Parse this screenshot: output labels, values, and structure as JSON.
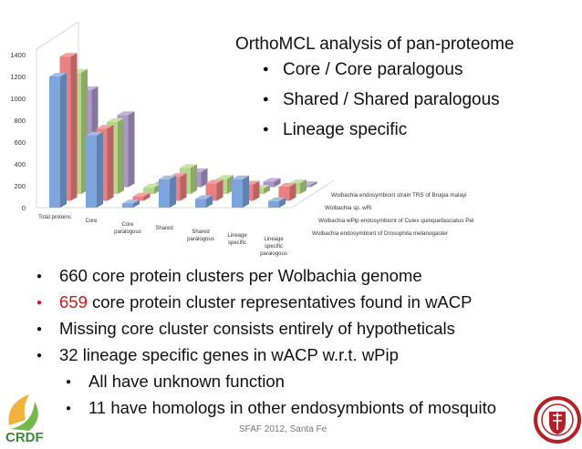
{
  "slide": {
    "side_title": "OrthoMCL analysis of pan-proteome",
    "side_items": [
      "Core / Core paralogous",
      "Shared / Shared paralogous",
      "Lineage specific"
    ],
    "bullets": [
      {
        "num": "",
        "text": "660 core protein clusters per Wolbachia genome"
      },
      {
        "num": "659",
        "text": " core protein cluster representatives found in wACP"
      },
      {
        "num": "",
        "text": "Missing core cluster consists entirely of hypotheticals"
      },
      {
        "num": "",
        "text": "32 lineage specific genes in wACP  w.r.t. wPip"
      },
      {
        "num": "",
        "text": "All have unknown function",
        "sub": true
      },
      {
        "num": "",
        "text": "11 have homologs in other endosymbionts of mosquito",
        "sub": true
      }
    ],
    "footer": "SFAF 2012, Santa Fe",
    "logos": [
      "CRDF",
      "seal"
    ]
  },
  "chart_data": {
    "type": "bar",
    "variant": "3d-clustered-depth",
    "categories": [
      "Total proteins",
      "Core",
      "Core paralogous",
      "Shared",
      "Shared paralogous",
      "Lineage specific",
      "Lineage specific paralogous"
    ],
    "series": [
      {
        "name": "Wolbachia endosymbiont of Drosophila melanogaster",
        "color": "#7ea4dc",
        "values": [
          1200,
          660,
          40,
          260,
          80,
          260,
          60
        ]
      },
      {
        "name": "Wolbachia wPip endosymbiont of Culex quinquefasciatus Pel",
        "color": "#ec7f80",
        "values": [
          1320,
          660,
          40,
          220,
          160,
          150,
          130
        ]
      },
      {
        "name": "Wolbachia sp. wRi",
        "color": "#b6d789",
        "values": [
          1110,
          660,
          60,
          240,
          140,
          50,
          100
        ]
      },
      {
        "name": "Wolbachia endosymbiont strain TRS of Brugia malayi",
        "color": "#ac98c8",
        "values": [
          890,
          660,
          30,
          140,
          40,
          50,
          20
        ]
      }
    ],
    "yticks": [
      0,
      200,
      400,
      600,
      800,
      1000,
      1200,
      1400
    ],
    "ylim": [
      0,
      1400
    ],
    "legend": "right-diagonal",
    "grid": false
  }
}
